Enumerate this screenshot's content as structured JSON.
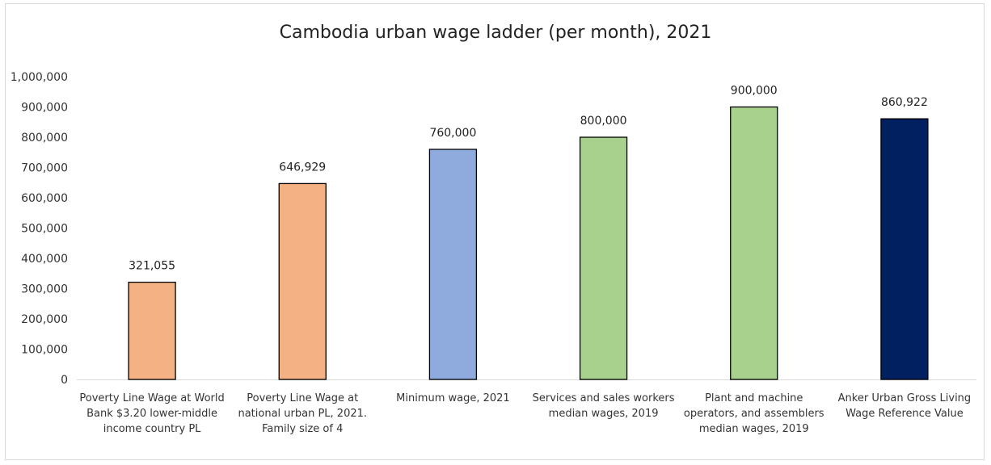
{
  "chart_data": {
    "type": "bar",
    "title": "Cambodia urban wage ladder (per month), 2021",
    "xlabel": "",
    "ylabel": "",
    "ylim": [
      0,
      1000000
    ],
    "y_ticks": [
      "0",
      "100,000",
      "200,000",
      "300,000",
      "400,000",
      "500,000",
      "600,000",
      "700,000",
      "800,000",
      "900,000",
      "1,000,000"
    ],
    "y_tick_values": [
      0,
      100000,
      200000,
      300000,
      400000,
      500000,
      600000,
      700000,
      800000,
      900000,
      1000000
    ],
    "grid": false,
    "categories": [
      [
        "Poverty Line Wage at World",
        "Bank $3.20 lower-middle",
        "income country PL"
      ],
      [
        "Poverty Line Wage at",
        "national urban PL, 2021.",
        "Family size of 4"
      ],
      [
        "Minimum wage, 2021"
      ],
      [
        "Services and sales workers",
        "median wages, 2019"
      ],
      [
        "Plant and machine",
        "operators, and assemblers",
        "median wages, 2019"
      ],
      [
        "Anker Urban Gross Living",
        "Wage Reference Value"
      ]
    ],
    "values": [
      321055,
      646929,
      760000,
      800000,
      900000,
      860922
    ],
    "data_labels": [
      "321,055",
      "646,929",
      "760,000",
      "800,000",
      "900,000",
      "860,922"
    ],
    "colors": [
      "#F4B183",
      "#F4B183",
      "#8FAADC",
      "#A9D18E",
      "#A9D18E",
      "#002060"
    ],
    "edge_color": "#000000"
  }
}
